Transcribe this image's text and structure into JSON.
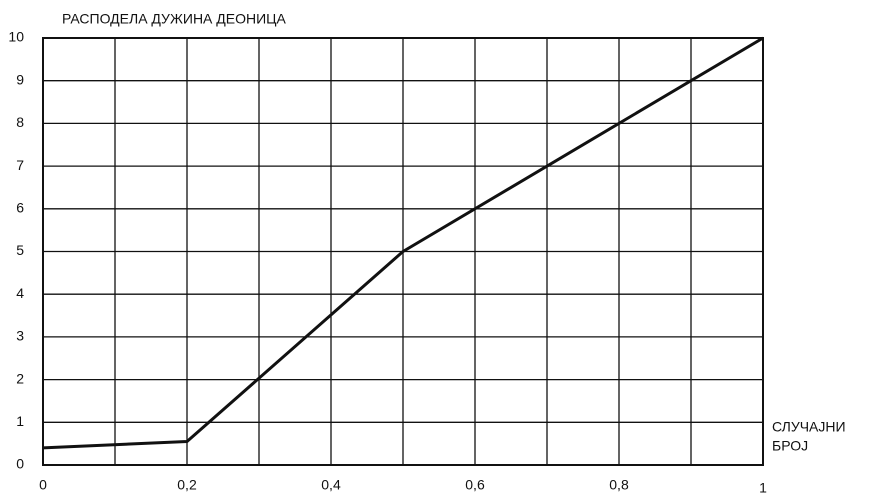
{
  "chart_data": {
    "type": "line",
    "title": "РАСПОДЕЛА ДУЖИНА ДЕОНИЦА",
    "xlabel": [
      "СЛУЧАЈНИ",
      "БРОЈ"
    ],
    "x": [
      0,
      0.2,
      0.5,
      1
    ],
    "series": [
      {
        "color": "#111111",
        "values": [
          0.4,
          0.55,
          5,
          10
        ]
      }
    ],
    "xlim": [
      0,
      1
    ],
    "ylim": [
      0,
      10
    ],
    "xticks": [
      0,
      {
        "value": 0.2,
        "label": "0,2"
      },
      {
        "value": 0.4,
        "label": "0,4"
      },
      {
        "value": 0.6,
        "label": "0,6"
      },
      {
        "value": 0.8,
        "label": "0,8"
      },
      1
    ],
    "xminor": [
      0.1,
      0.3,
      0.5,
      0.7,
      0.9
    ],
    "yticks": [
      0,
      1,
      2,
      3,
      4,
      5,
      6,
      7,
      8,
      9,
      10
    ],
    "grid": true
  }
}
